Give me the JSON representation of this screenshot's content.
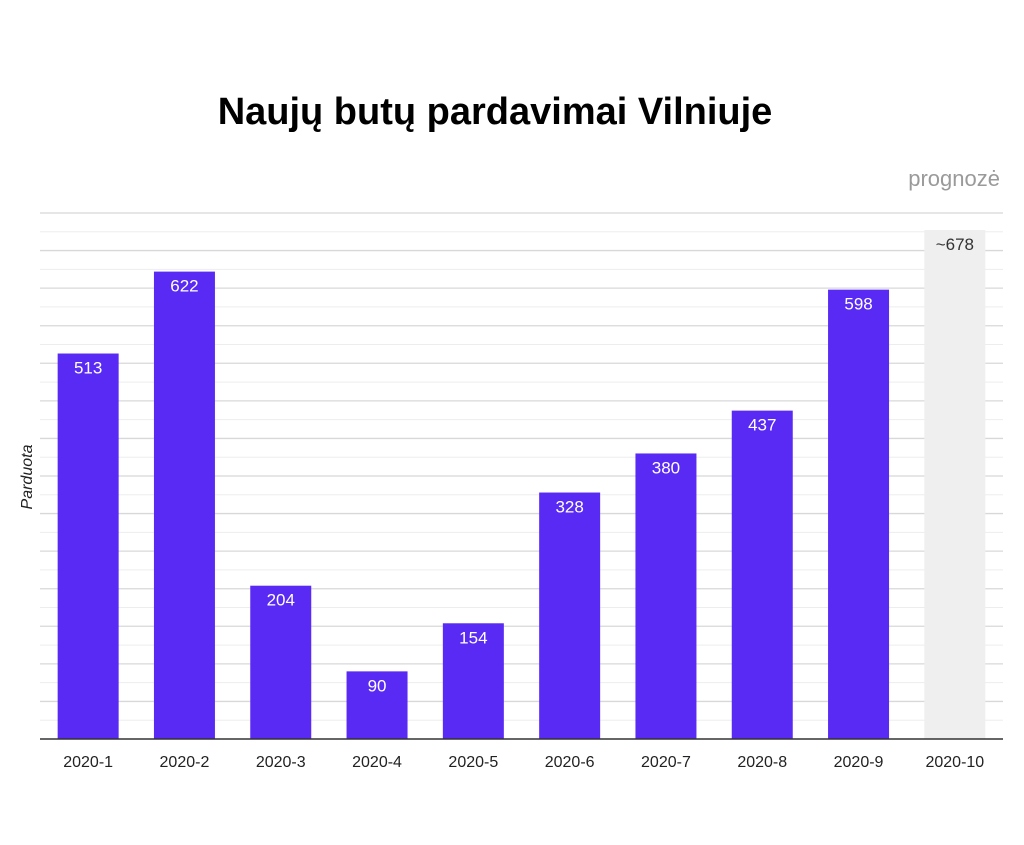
{
  "chart_data": {
    "type": "bar",
    "title": "Naujų butų pardavimai Vilniuje",
    "ylabel": "Parduota",
    "xlabel": "",
    "forecast_label": "prognozė",
    "categories": [
      "2020-1",
      "2020-2",
      "2020-3",
      "2020-4",
      "2020-5",
      "2020-6",
      "2020-7",
      "2020-8",
      "2020-9",
      "2020-10"
    ],
    "values": [
      513,
      622,
      204,
      90,
      154,
      328,
      380,
      437,
      598,
      678
    ],
    "data_labels": [
      "513",
      "622",
      "204",
      "90",
      "154",
      "328",
      "380",
      "437",
      "598",
      "~678"
    ],
    "forecast": [
      false,
      false,
      false,
      false,
      false,
      false,
      false,
      false,
      false,
      true
    ],
    "ylim": [
      0,
      700
    ],
    "grid": true,
    "legend": "none",
    "colors": {
      "bar": "#5a2af5",
      "forecast_bar": "#efefef",
      "grid": "#e4e4e4",
      "axis": "#333333"
    }
  }
}
